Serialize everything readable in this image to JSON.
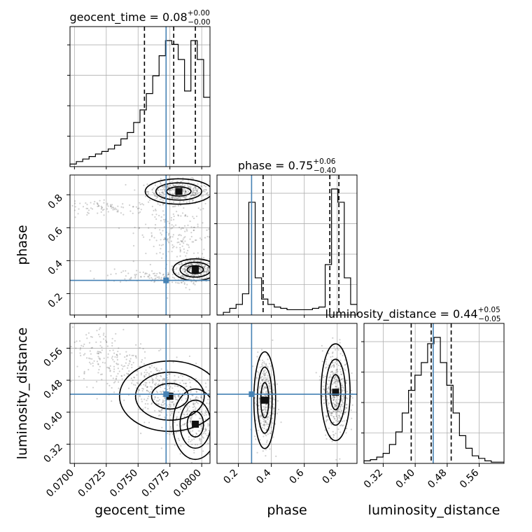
{
  "chart_data": {
    "type": "corner",
    "parameters": [
      "geocent_time",
      "phase",
      "luminosity_distance"
    ],
    "titles": [
      {
        "param": "geocent_time",
        "text": "geocent_time = 0.08",
        "plus": "+0.00",
        "minus": "−0.00",
        "median": 0.08
      },
      {
        "param": "phase",
        "text": "phase = 0.75",
        "plus": "+0.06",
        "minus": "−0.40",
        "median": 0.75
      },
      {
        "param": "luminosity_distance",
        "text": "luminosity_distance = 0.44",
        "plus": "+0.05",
        "minus": "−0.05",
        "median": 0.44
      }
    ],
    "ranges": {
      "geocent_time": [
        0.06965,
        0.08065
      ],
      "phase": [
        0.07,
        0.92
      ],
      "luminosity_distance": [
        0.272,
        0.622
      ]
    },
    "ticks": {
      "geocent_time": {
        "values": [
          0.07,
          0.0725,
          0.075,
          0.0775,
          0.08
        ],
        "labels": [
          "0.0700",
          "0.0725",
          "0.0750",
          "0.0775",
          "0.0800"
        ]
      },
      "phase": {
        "values": [
          0.2,
          0.4,
          0.6,
          0.8
        ],
        "labels": [
          "0.2",
          "0.4",
          "0.6",
          "0.8"
        ]
      },
      "luminosity_distance": {
        "values": [
          0.32,
          0.4,
          0.48,
          0.56
        ],
        "labels": [
          "0.32",
          "0.40",
          "0.48",
          "0.56"
        ]
      }
    },
    "axis_labels": {
      "geocent_time": "geocent_time",
      "phase": "phase",
      "luminosity_distance": "luminosity_distance"
    },
    "truths": {
      "geocent_time": 0.0772,
      "phase": 0.28,
      "luminosity_distance": 0.445
    },
    "quantiles": {
      "geocent_time": [
        0.0755,
        0.0778,
        0.0795
      ],
      "phase": [
        0.35,
        0.755,
        0.81
      ],
      "luminosity_distance": [
        0.39,
        0.44,
        0.49
      ]
    },
    "histograms": {
      "geocent_time": [
        2,
        4,
        6,
        8,
        10,
        12,
        14,
        17,
        22,
        27,
        35,
        45,
        58,
        72,
        88,
        100,
        97,
        85,
        60,
        100,
        85,
        55
      ],
      "phase": [
        0,
        2,
        5,
        8,
        16,
        85,
        28,
        12,
        8,
        6,
        5,
        4,
        4,
        4,
        4,
        5,
        6,
        38,
        95,
        85,
        28,
        8
      ],
      "luminosity_distance": [
        2,
        3,
        5,
        8,
        15,
        25,
        40,
        58,
        70,
        80,
        95,
        100,
        80,
        62,
        40,
        22,
        12,
        6,
        4,
        2,
        1,
        1
      ]
    },
    "grid": true,
    "colors": {
      "truth": "#4682b4",
      "samples": "#555555",
      "lines": "#000000"
    }
  }
}
